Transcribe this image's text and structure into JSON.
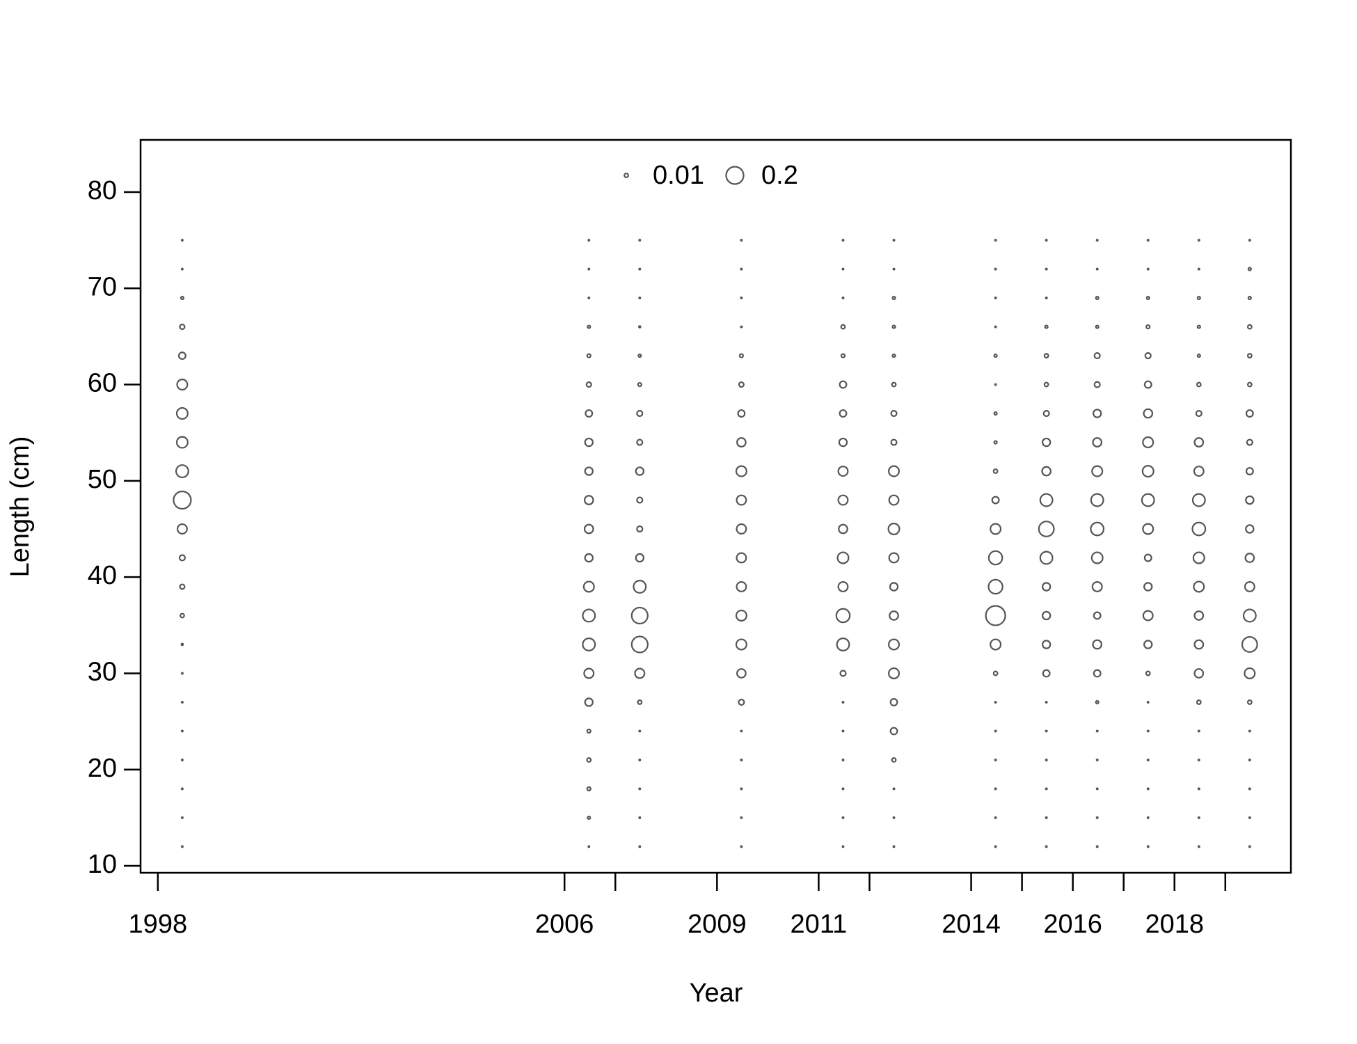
{
  "chart_data": {
    "type": "bubble",
    "x_label": "Year",
    "y_label": "Length (cm)",
    "xlim": [
      1997.66,
      2020.29
    ],
    "ylim": [
      9.28,
      85.42
    ],
    "xticks": [
      1998,
      2006,
      2009,
      2011,
      2014,
      2016,
      2018
    ],
    "xminor_ticks": [
      2007,
      2012,
      2015,
      2017,
      2019
    ],
    "yticks": [
      10,
      20,
      30,
      40,
      50,
      60,
      70,
      80
    ],
    "y": [
      12,
      15,
      18,
      21,
      24,
      27,
      30,
      33,
      36,
      39,
      42,
      45,
      48,
      51,
      54,
      57,
      60,
      63,
      66,
      69,
      72,
      75
    ],
    "size_ref": 0.2,
    "legend": {
      "values": [
        0.01,
        0.2
      ]
    },
    "color": "#555555",
    "columns": [
      {
        "x": 1998.48,
        "values": [
          0.001,
          0.001,
          0.001,
          0.001,
          0.001,
          0.001,
          0.001,
          0.002,
          0.01,
          0.015,
          0.02,
          0.06,
          0.2,
          0.1,
          0.08,
          0.08,
          0.07,
          0.03,
          0.015,
          0.005,
          0.001,
          0.001
        ]
      },
      {
        "x": 2006.48,
        "values": [
          0.001,
          0.005,
          0.008,
          0.01,
          0.008,
          0.04,
          0.06,
          0.1,
          0.1,
          0.07,
          0.04,
          0.05,
          0.05,
          0.04,
          0.04,
          0.03,
          0.015,
          0.008,
          0.005,
          0.001,
          0.001,
          0.001
        ]
      },
      {
        "x": 2007.48,
        "values": [
          0.001,
          0.001,
          0.001,
          0.001,
          0.001,
          0.01,
          0.06,
          0.17,
          0.17,
          0.1,
          0.04,
          0.02,
          0.02,
          0.04,
          0.02,
          0.02,
          0.008,
          0.005,
          0.002,
          0.001,
          0.001,
          0.001
        ]
      },
      {
        "x": 2009.48,
        "values": [
          0.001,
          0.001,
          0.001,
          0.001,
          0.001,
          0.02,
          0.05,
          0.07,
          0.07,
          0.06,
          0.06,
          0.06,
          0.06,
          0.07,
          0.05,
          0.03,
          0.015,
          0.008,
          0.001,
          0.001,
          0.001,
          0.001
        ]
      },
      {
        "x": 2011.48,
        "values": [
          0.001,
          0.001,
          0.001,
          0.001,
          0.001,
          0.001,
          0.02,
          0.1,
          0.12,
          0.06,
          0.08,
          0.05,
          0.06,
          0.06,
          0.04,
          0.03,
          0.03,
          0.008,
          0.01,
          0.001,
          0.001,
          0.001
        ]
      },
      {
        "x": 2012.48,
        "values": [
          0.001,
          0.001,
          0.001,
          0.01,
          0.03,
          0.03,
          0.07,
          0.07,
          0.05,
          0.04,
          0.06,
          0.08,
          0.06,
          0.07,
          0.02,
          0.02,
          0.01,
          0.005,
          0.005,
          0.005,
          0.001,
          0.001
        ]
      },
      {
        "x": 2014.48,
        "values": [
          0.001,
          0.001,
          0.001,
          0.001,
          0.001,
          0.001,
          0.01,
          0.07,
          0.25,
          0.13,
          0.12,
          0.07,
          0.03,
          0.01,
          0.005,
          0.005,
          0.001,
          0.005,
          0.001,
          0.001,
          0.001,
          0.001
        ]
      },
      {
        "x": 2015.48,
        "values": [
          0.001,
          0.001,
          0.001,
          0.001,
          0.001,
          0.001,
          0.03,
          0.04,
          0.04,
          0.04,
          0.1,
          0.15,
          0.1,
          0.05,
          0.04,
          0.02,
          0.01,
          0.01,
          0.005,
          0.001,
          0.001,
          0.001
        ]
      },
      {
        "x": 2016.48,
        "values": [
          0.001,
          0.001,
          0.001,
          0.001,
          0.001,
          0.005,
          0.03,
          0.05,
          0.03,
          0.06,
          0.08,
          0.11,
          0.1,
          0.07,
          0.05,
          0.04,
          0.02,
          0.02,
          0.005,
          0.005,
          0.001,
          0.001
        ]
      },
      {
        "x": 2017.48,
        "values": [
          0.001,
          0.001,
          0.001,
          0.001,
          0.001,
          0.001,
          0.01,
          0.04,
          0.06,
          0.04,
          0.03,
          0.07,
          0.1,
          0.08,
          0.07,
          0.05,
          0.03,
          0.02,
          0.008,
          0.005,
          0.001,
          0.001
        ]
      },
      {
        "x": 2018.48,
        "values": [
          0.001,
          0.001,
          0.001,
          0.001,
          0.001,
          0.01,
          0.05,
          0.05,
          0.05,
          0.07,
          0.08,
          0.11,
          0.1,
          0.06,
          0.05,
          0.02,
          0.01,
          0.005,
          0.005,
          0.005,
          0.001,
          0.001
        ]
      },
      {
        "x": 2019.48,
        "values": [
          0.001,
          0.001,
          0.001,
          0.001,
          0.001,
          0.01,
          0.07,
          0.15,
          0.1,
          0.06,
          0.05,
          0.04,
          0.04,
          0.03,
          0.02,
          0.03,
          0.01,
          0.01,
          0.01,
          0.005,
          0.005,
          0.001
        ]
      }
    ]
  }
}
